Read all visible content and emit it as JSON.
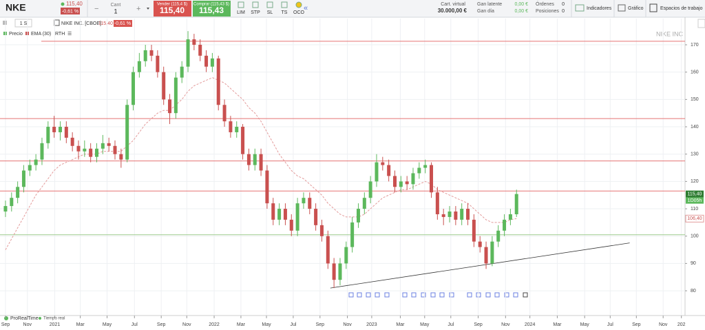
{
  "header": {
    "ticker": "NKE",
    "price": "115,40",
    "change": "-0,61 %",
    "qty_label": "Cant",
    "qty": "1",
    "minus": "−",
    "plus": "+",
    "sell_label": "Vender (115,4 $)",
    "sell": "115,40",
    "buy_label": "Comprar (115,43 $)",
    "buy": "115,43",
    "orders": [
      "LIM",
      "STP",
      "SL",
      "TS",
      "OCO"
    ],
    "virtual_label": "Cart. virtual",
    "virtual": "30.000,00 €",
    "latent_label": "Gan latente",
    "latent": "0,00 €",
    "day_label": "Gan día",
    "day": "0,00 €",
    "orders_label": "Órdenes",
    "orders_count": "0",
    "positions_label": "Posiciones",
    "positions_count": "0",
    "indicators": "Indicadores",
    "chart": "Gráfico",
    "workspaces": "Espacios de trabajo"
  },
  "toolbar": {
    "period": "1 S",
    "instrument": "NIKE INC. [CBOE]",
    "price": "115,40",
    "change": "-0,61 %",
    "legend": [
      "Precio",
      "EMA (30)",
      "RTH"
    ]
  },
  "footer": {
    "brand": "ProRealTime",
    "feed": "Tiempo real"
  },
  "chart_data": {
    "type": "candlestick",
    "watermark": "NIKE INC",
    "candles": [
      [
        109,
        113,
        107,
        111
      ],
      [
        111,
        116,
        109,
        114
      ],
      [
        114,
        120,
        112,
        118
      ],
      [
        118,
        126,
        116,
        124
      ],
      [
        124,
        128,
        122,
        126
      ],
      [
        126,
        130,
        124,
        128
      ],
      [
        128,
        136,
        126,
        134
      ],
      [
        134,
        142,
        132,
        140
      ],
      [
        140,
        144,
        136,
        138
      ],
      [
        138,
        142,
        135,
        140
      ],
      [
        140,
        142,
        134,
        136
      ],
      [
        136,
        138,
        131,
        133
      ],
      [
        133,
        135,
        128,
        131
      ],
      [
        131,
        135,
        129,
        132
      ],
      [
        132,
        134,
        127,
        129
      ],
      [
        129,
        134,
        127,
        132
      ],
      [
        132,
        137,
        130,
        134
      ],
      [
        134,
        136,
        131,
        133
      ],
      [
        133,
        135,
        128,
        130
      ],
      [
        130,
        132,
        125,
        128
      ],
      [
        128,
        150,
        127,
        148
      ],
      [
        148,
        162,
        146,
        160
      ],
      [
        160,
        167,
        158,
        164
      ],
      [
        164,
        170,
        162,
        168
      ],
      [
        168,
        170,
        164,
        166
      ],
      [
        166,
        168,
        158,
        160
      ],
      [
        160,
        162,
        148,
        150
      ],
      [
        150,
        152,
        141,
        145
      ],
      [
        145,
        160,
        143,
        158
      ],
      [
        158,
        164,
        156,
        162
      ],
      [
        162,
        175,
        160,
        172
      ],
      [
        172,
        174,
        168,
        170
      ],
      [
        170,
        172,
        164,
        166
      ],
      [
        166,
        168,
        160,
        162
      ],
      [
        162,
        167,
        160,
        165
      ],
      [
        165,
        166,
        146,
        148
      ],
      [
        148,
        150,
        140,
        142
      ],
      [
        142,
        144,
        136,
        138
      ],
      [
        138,
        142,
        136,
        140
      ],
      [
        140,
        141,
        128,
        130
      ],
      [
        130,
        132,
        124,
        126
      ],
      [
        126,
        132,
        124,
        130
      ],
      [
        130,
        132,
        122,
        124
      ],
      [
        124,
        126,
        110,
        112
      ],
      [
        112,
        114,
        104,
        106
      ],
      [
        106,
        112,
        104,
        110
      ],
      [
        110,
        112,
        104,
        106
      ],
      [
        106,
        108,
        100,
        102
      ],
      [
        102,
        114,
        100,
        112
      ],
      [
        112,
        116,
        110,
        114
      ],
      [
        114,
        116,
        108,
        110
      ],
      [
        110,
        112,
        102,
        104
      ],
      [
        104,
        106,
        98,
        100
      ],
      [
        100,
        102,
        88,
        90
      ],
      [
        90,
        92,
        81,
        84
      ],
      [
        84,
        92,
        82,
        90
      ],
      [
        90,
        98,
        88,
        96
      ],
      [
        96,
        107,
        94,
        105
      ],
      [
        105,
        112,
        103,
        110
      ],
      [
        110,
        116,
        108,
        114
      ],
      [
        114,
        122,
        112,
        120
      ],
      [
        120,
        130,
        118,
        127
      ],
      [
        127,
        129,
        124,
        126
      ],
      [
        126,
        128,
        120,
        122
      ],
      [
        122,
        124,
        116,
        118
      ],
      [
        118,
        122,
        116,
        120
      ],
      [
        120,
        122,
        117,
        119
      ],
      [
        119,
        125,
        117,
        123
      ],
      [
        123,
        127,
        121,
        125
      ],
      [
        125,
        128,
        123,
        126
      ],
      [
        126,
        127,
        114,
        116
      ],
      [
        116,
        118,
        106,
        108
      ],
      [
        108,
        110,
        104,
        107
      ],
      [
        107,
        111,
        105,
        109
      ],
      [
        109,
        111,
        104,
        106
      ],
      [
        106,
        112,
        104,
        110
      ],
      [
        110,
        112,
        104,
        106
      ],
      [
        106,
        108,
        96,
        98
      ],
      [
        98,
        100,
        94,
        96
      ],
      [
        96,
        98,
        88,
        90
      ],
      [
        90,
        100,
        89,
        98
      ],
      [
        98,
        104,
        96,
        102
      ],
      [
        102,
        108,
        100,
        106
      ],
      [
        106,
        110,
        104,
        108
      ],
      [
        108,
        117,
        107,
        115.4
      ]
    ],
    "ema_name": "EMA (30)",
    "ema": [
      95,
      99,
      103,
      107,
      111,
      115,
      118,
      121,
      124,
      126,
      127,
      128,
      129,
      130,
      130,
      130,
      131,
      131,
      131,
      131,
      133,
      135,
      138,
      141,
      143,
      145,
      146,
      146,
      148,
      150,
      153,
      155,
      156,
      157,
      158,
      157,
      156,
      154,
      152,
      150,
      147,
      145,
      142,
      138,
      134,
      130,
      127,
      124,
      122,
      121,
      119,
      117,
      115,
      112,
      110,
      108,
      107,
      107,
      107,
      108,
      110,
      112,
      114,
      115,
      116,
      117,
      117,
      118,
      119,
      120,
      119,
      117,
      116,
      115,
      114,
      113,
      112,
      110,
      108,
      106,
      105,
      105,
      105,
      106,
      106.4
    ],
    "up_color": "#5cb85c",
    "down_color": "#c9504f",
    "ema_color": "#e39a9a",
    "hlines": [
      {
        "value": 171.3,
        "color": "#e57373"
      },
      {
        "value": 143,
        "color": "#e57373"
      },
      {
        "value": 127.5,
        "color": "#e57373"
      },
      {
        "value": 116.5,
        "color": "#e57373"
      },
      {
        "value": 100.5,
        "color": "#9ccc8c"
      }
    ],
    "trendline": {
      "x": [
        53.4,
        102.6
      ],
      "y": [
        81,
        97.5
      ],
      "color": "#333"
    },
    "last_label": {
      "value": 115.4,
      "label": "115,40"
    },
    "countdown": "1D05h",
    "ema_label": {
      "value": 106.4,
      "label": "106,40"
    },
    "xlim": [
      -0.9,
      111.7
    ],
    "ylim": [
      71.7,
      176.3
    ],
    "yticks": [
      80,
      90,
      100,
      110,
      120,
      130,
      140,
      150,
      160,
      170
    ],
    "xticks": [
      {
        "value": 0,
        "label": "Sep"
      },
      {
        "value": 3.6,
        "label": "Nov"
      },
      {
        "value": 8.1,
        "label": "2021"
      },
      {
        "value": 12.3,
        "label": "Mar"
      },
      {
        "value": 16.7,
        "label": "May"
      },
      {
        "value": 21.2,
        "label": "Jul"
      },
      {
        "value": 25.6,
        "label": "Sep"
      },
      {
        "value": 29.8,
        "label": "Nov"
      },
      {
        "value": 34.3,
        "label": "2022"
      },
      {
        "value": 38.7,
        "label": "Mar"
      },
      {
        "value": 42.9,
        "label": "May"
      },
      {
        "value": 47.3,
        "label": "Jul"
      },
      {
        "value": 51.7,
        "label": "Sep"
      },
      {
        "value": 56.2,
        "label": "Nov"
      },
      {
        "value": 60.2,
        "label": "2023"
      },
      {
        "value": 64.9,
        "label": "Mar"
      },
      {
        "value": 68.9,
        "label": "May"
      },
      {
        "value": 73.2,
        "label": "Jul"
      },
      {
        "value": 77.7,
        "label": "Sep"
      },
      {
        "value": 82.2,
        "label": "Nov"
      },
      {
        "value": 86.2,
        "label": "2024"
      },
      {
        "value": 90.7,
        "label": "Mar"
      },
      {
        "value": 95.2,
        "label": "May"
      },
      {
        "value": 99.4,
        "label": "Jul"
      },
      {
        "value": 103.7,
        "label": "Sep"
      },
      {
        "value": 108.1,
        "label": "Nov"
      },
      {
        "value": 111.1,
        "label": "202"
      }
    ],
    "grid": true
  }
}
